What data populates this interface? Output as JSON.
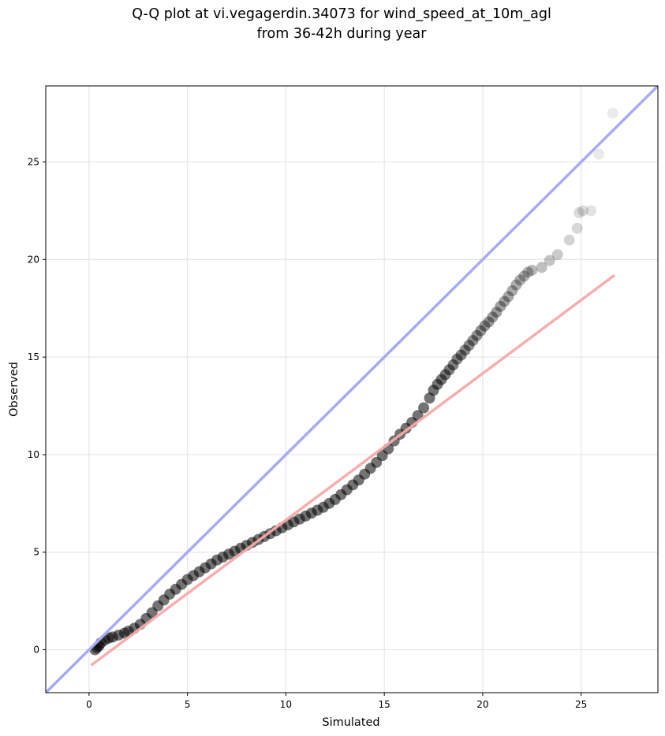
{
  "chart_data": {
    "type": "scatter",
    "title": "Q-Q plot at vi.vegagerdin.34073 for wind_speed_at_10m_agl",
    "subtitle": "from 36-42h during year",
    "xlabel": "Simulated",
    "ylabel": "Observed",
    "xlim": [
      -2.2,
      28.9
    ],
    "ylim": [
      -2.2,
      28.9
    ],
    "xticks": [
      0,
      5,
      10,
      15,
      20,
      25
    ],
    "yticks": [
      0,
      5,
      10,
      15,
      20,
      25
    ],
    "grid": true,
    "colors": {
      "points": "#000000",
      "identity_line": "#aaaaf4",
      "fit_line": "#f7aaaa"
    },
    "identity_line": {
      "x": [
        -2.2,
        28.9
      ],
      "y": [
        -2.2,
        28.9
      ]
    },
    "fit_line": {
      "x": [
        0.1,
        26.7
      ],
      "y": [
        -0.8,
        19.2
      ]
    },
    "series": [
      {
        "x": [
          0.3,
          0.4,
          0.5,
          0.6,
          0.8,
          1.0,
          1.2,
          1.5,
          1.8,
          2.0,
          2.3,
          2.6,
          2.9,
          3.2,
          3.5,
          3.8,
          4.1,
          4.4,
          4.7,
          5.0,
          5.3,
          5.6,
          5.9,
          6.2,
          6.5,
          6.8,
          7.1,
          7.4,
          7.7,
          8.0,
          8.3,
          8.6,
          8.9,
          9.2,
          9.5,
          9.8,
          10.1,
          10.4,
          10.7,
          11.0,
          11.3,
          11.6,
          11.9,
          12.2,
          12.5,
          12.8,
          13.1,
          13.4,
          13.7,
          14.0,
          14.3,
          14.6,
          14.9,
          15.2,
          15.5,
          15.8,
          16.1,
          16.4,
          16.7,
          17.0,
          17.3,
          17.5,
          17.7,
          17.9,
          18.1,
          18.3,
          18.5,
          18.7,
          18.9,
          19.1,
          19.3,
          19.5,
          19.7,
          19.9,
          20.1,
          20.3,
          20.5,
          20.7,
          20.9,
          21.1,
          21.3,
          21.5,
          21.7,
          21.9,
          22.1,
          22.3,
          22.5,
          23.0,
          23.4,
          23.8,
          24.4,
          24.8,
          24.9,
          25.1,
          25.5,
          25.9,
          26.6
        ],
        "y": [
          0.0,
          0.1,
          0.2,
          0.35,
          0.5,
          0.6,
          0.65,
          0.75,
          0.85,
          0.95,
          1.1,
          1.3,
          1.6,
          1.9,
          2.25,
          2.55,
          2.85,
          3.1,
          3.35,
          3.6,
          3.8,
          4.0,
          4.2,
          4.4,
          4.6,
          4.75,
          4.9,
          5.05,
          5.2,
          5.35,
          5.5,
          5.65,
          5.8,
          5.95,
          6.1,
          6.25,
          6.4,
          6.55,
          6.7,
          6.85,
          7.0,
          7.15,
          7.3,
          7.5,
          7.7,
          7.95,
          8.2,
          8.45,
          8.7,
          9.0,
          9.3,
          9.6,
          9.95,
          10.3,
          10.7,
          11.05,
          11.35,
          11.65,
          12.0,
          12.4,
          12.9,
          13.3,
          13.6,
          13.85,
          14.1,
          14.35,
          14.6,
          14.9,
          15.1,
          15.35,
          15.6,
          15.85,
          16.1,
          16.35,
          16.6,
          16.8,
          17.05,
          17.3,
          17.6,
          17.85,
          18.1,
          18.4,
          18.7,
          18.95,
          19.15,
          19.35,
          19.45,
          19.6,
          19.95,
          20.25,
          21.0,
          21.6,
          22.4,
          22.5,
          22.5,
          25.4,
          27.5
        ]
      }
    ]
  }
}
